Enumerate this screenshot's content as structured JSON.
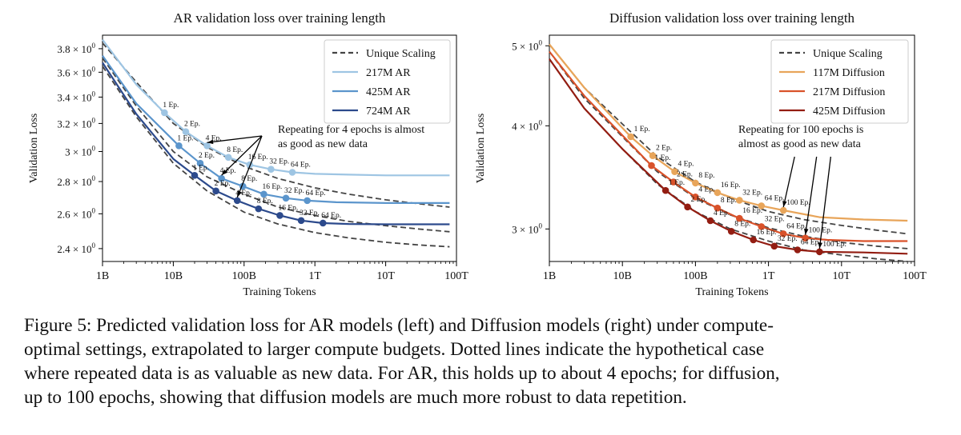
{
  "caption": {
    "lines": [
      "Figure 5: Predicted validation loss for AR models (left) and Diffusion models (right) under compute-",
      "optimal settings, extrapolated to larger compute budgets. Dotted lines indicate the hypothetical case",
      "where repeated data is as valuable as new data. For AR, this holds up to about 4 epochs; for diffusion,",
      "up to 100 epochs, showing that diffusion models are much more robust to data repetition."
    ]
  },
  "chart_data": [
    {
      "type": "line",
      "title": "AR validation loss over training length",
      "xlabel": "Training Tokens",
      "ylabel": "Validation Loss",
      "xscale": "log",
      "yscale": "log",
      "xlim": [
        1000000000.0,
        100000000000000.0
      ],
      "ylim": [
        2.33,
        3.92
      ],
      "xticks": [
        {
          "v": 1000000000.0,
          "label": "1B"
        },
        {
          "v": 10000000000.0,
          "label": "10B"
        },
        {
          "v": 100000000000.0,
          "label": "100B"
        },
        {
          "v": 1000000000000.0,
          "label": "1T"
        },
        {
          "v": 10000000000000.0,
          "label": "10T"
        },
        {
          "v": 100000000000000.0,
          "label": "100T"
        }
      ],
      "yticks": [
        {
          "v": 2.4,
          "base": "2.4"
        },
        {
          "v": 2.6,
          "base": "2.6"
        },
        {
          "v": 2.8,
          "base": "2.8"
        },
        {
          "v": 3.0,
          "base": "3"
        },
        {
          "v": 3.2,
          "base": "3.2"
        },
        {
          "v": 3.4,
          "base": "3.4"
        },
        {
          "v": 3.6,
          "base": "3.6"
        },
        {
          "v": 3.8,
          "base": "3.8"
        }
      ],
      "tick_suffix": "× 10",
      "tick_exp": "0",
      "legend_position": "top-right",
      "legend": [
        {
          "label": "Unique Scaling",
          "color": "#444444",
          "dashed": true
        },
        {
          "label": "217M AR",
          "color": "#9ec5e3",
          "dashed": false
        },
        {
          "label": "425M AR",
          "color": "#5b95cc",
          "dashed": false
        },
        {
          "label": "724M AR",
          "color": "#2c4a8c",
          "dashed": false
        }
      ],
      "series": [
        {
          "name": "Unique Scaling (217M)",
          "color": "#444444",
          "dashed": true,
          "x": [
            1000000000.0,
            3000000000.0,
            10000000000.0,
            30000000000.0,
            100000000000.0,
            300000000000.0,
            1000000000000.0,
            3000000000000.0,
            10000000000000.0,
            30000000000000.0,
            80000000000000.0
          ],
          "y": [
            3.85,
            3.52,
            3.2,
            3.03,
            2.9,
            2.82,
            2.76,
            2.72,
            2.685,
            2.66,
            2.64
          ]
        },
        {
          "name": "217M AR",
          "color": "#9ec5e3",
          "dashed": false,
          "x": [
            1000000000.0,
            3000000000.0,
            7500000000.0,
            15000000000.0,
            30000000000.0,
            60000000000.0,
            120000000000.0,
            240000000000.0,
            480000000000.0,
            1000000000000.0,
            3000000000000.0,
            10000000000000.0,
            30000000000000.0,
            80000000000000.0
          ],
          "y": [
            3.88,
            3.5,
            3.28,
            3.14,
            3.04,
            2.96,
            2.91,
            2.88,
            2.86,
            2.85,
            2.845,
            2.84,
            2.84,
            2.84
          ]
        },
        {
          "name": "Unique Scaling (425M)",
          "color": "#444444",
          "dashed": true,
          "x": [
            1000000000.0,
            3000000000.0,
            10000000000.0,
            30000000000.0,
            100000000000.0,
            300000000000.0,
            1000000000000.0,
            3000000000000.0,
            10000000000000.0,
            30000000000000.0,
            80000000000000.0
          ],
          "y": [
            3.72,
            3.33,
            3.0,
            2.83,
            2.72,
            2.64,
            2.59,
            2.555,
            2.53,
            2.51,
            2.495
          ]
        },
        {
          "name": "425M AR",
          "color": "#5b95cc",
          "dashed": false,
          "x": [
            1000000000.0,
            3000000000.0,
            12000000000.0,
            24000000000.0,
            48000000000.0,
            96000000000.0,
            190000000000.0,
            390000000000.0,
            780000000000.0,
            2000000000000.0,
            10000000000000.0,
            80000000000000.0
          ],
          "y": [
            3.74,
            3.35,
            3.04,
            2.92,
            2.82,
            2.77,
            2.72,
            2.695,
            2.68,
            2.67,
            2.665,
            2.665
          ]
        },
        {
          "name": "Unique Scaling (724M)",
          "color": "#444444",
          "dashed": true,
          "x": [
            1000000000.0,
            3000000000.0,
            10000000000.0,
            30000000000.0,
            100000000000.0,
            300000000000.0,
            1000000000000.0,
            3000000000000.0,
            10000000000000.0,
            30000000000000.0,
            80000000000000.0
          ],
          "y": [
            3.65,
            3.25,
            2.92,
            2.74,
            2.61,
            2.54,
            2.49,
            2.46,
            2.435,
            2.42,
            2.41
          ]
        },
        {
          "name": "724M AR",
          "color": "#2c4a8c",
          "dashed": false,
          "x": [
            1000000000.0,
            3000000000.0,
            10000000000.0,
            20000000000.0,
            40000000000.0,
            80000000000.0,
            160000000000.0,
            320000000000.0,
            640000000000.0,
            1300000000000.0,
            3000000000000.0,
            10000000000000.0,
            80000000000000.0
          ],
          "y": [
            3.68,
            3.27,
            2.95,
            2.84,
            2.74,
            2.68,
            2.63,
            2.59,
            2.56,
            2.545,
            2.54,
            2.538,
            2.538
          ]
        }
      ],
      "points": [
        {
          "x": 7500000000.0,
          "y": 3.28,
          "color": "#9ec5e3",
          "label": "1 Ep."
        },
        {
          "x": 15000000000.0,
          "y": 3.14,
          "color": "#9ec5e3",
          "label": "2 Ep."
        },
        {
          "x": 30000000000.0,
          "y": 3.04,
          "color": "#9ec5e3",
          "label": "4 Ep."
        },
        {
          "x": 60000000000.0,
          "y": 2.96,
          "color": "#9ec5e3",
          "label": "8 Ep."
        },
        {
          "x": 120000000000.0,
          "y": 2.91,
          "color": "#9ec5e3",
          "label": "16 Ep."
        },
        {
          "x": 240000000000.0,
          "y": 2.88,
          "color": "#9ec5e3",
          "label": "32 Ep."
        },
        {
          "x": 480000000000.0,
          "y": 2.86,
          "color": "#9ec5e3",
          "label": "64 Ep."
        },
        {
          "x": 12000000000.0,
          "y": 3.04,
          "color": "#5b95cc",
          "label": "1 Ep."
        },
        {
          "x": 24000000000.0,
          "y": 2.92,
          "color": "#5b95cc",
          "label": "2 Ep."
        },
        {
          "x": 48000000000.0,
          "y": 2.82,
          "color": "#5b95cc",
          "label": "4 Ep."
        },
        {
          "x": 96000000000.0,
          "y": 2.77,
          "color": "#5b95cc",
          "label": "8 Ep."
        },
        {
          "x": 190000000000.0,
          "y": 2.72,
          "color": "#5b95cc",
          "label": "16 Ep."
        },
        {
          "x": 390000000000.0,
          "y": 2.695,
          "color": "#5b95cc",
          "label": "32 Ep."
        },
        {
          "x": 780000000000.0,
          "y": 2.68,
          "color": "#5b95cc",
          "label": "64 Ep."
        },
        {
          "x": 20000000000.0,
          "y": 2.84,
          "color": "#2c4a8c",
          "label": "1 Ep."
        },
        {
          "x": 40000000000.0,
          "y": 2.74,
          "color": "#2c4a8c",
          "label": "2 Ep."
        },
        {
          "x": 80000000000.0,
          "y": 2.68,
          "color": "#2c4a8c",
          "label": "4 Ep."
        },
        {
          "x": 160000000000.0,
          "y": 2.63,
          "color": "#2c4a8c",
          "label": "8 Ep."
        },
        {
          "x": 320000000000.0,
          "y": 2.59,
          "color": "#2c4a8c",
          "label": "16 Ep."
        },
        {
          "x": 640000000000.0,
          "y": 2.56,
          "color": "#2c4a8c",
          "label": "32 Ep."
        },
        {
          "x": 1300000000000.0,
          "y": 2.545,
          "color": "#2c4a8c",
          "label": "64 Ep."
        }
      ],
      "annotation": {
        "lines": [
          "Repeating for 4 epochs is almost",
          "as good as new data"
        ],
        "arrow_targets": [
          {
            "x": 30000000000.0,
            "y": 3.04
          },
          {
            "x": 48000000000.0,
            "y": 2.82
          },
          {
            "x": 80000000000.0,
            "y": 2.68
          }
        ]
      }
    },
    {
      "type": "line",
      "title": "Diffusion validation loss over training length",
      "xlabel": "Training Tokens",
      "ylabel": "Validation Loss",
      "xscale": "log",
      "yscale": "log",
      "xlim": [
        1000000000.0,
        100000000000000.0
      ],
      "ylim": [
        2.74,
        5.15
      ],
      "xticks": [
        {
          "v": 1000000000.0,
          "label": "1B"
        },
        {
          "v": 10000000000.0,
          "label": "10B"
        },
        {
          "v": 100000000000.0,
          "label": "100B"
        },
        {
          "v": 1000000000000.0,
          "label": "1T"
        },
        {
          "v": 10000000000000.0,
          "label": "10T"
        },
        {
          "v": 100000000000000.0,
          "label": "100T"
        }
      ],
      "yticks": [
        {
          "v": 3.0,
          "base": "3"
        },
        {
          "v": 4.0,
          "base": "4"
        },
        {
          "v": 5.0,
          "base": "5"
        }
      ],
      "tick_suffix": "× 10",
      "tick_exp": "0",
      "legend_position": "top-right",
      "legend": [
        {
          "label": "Unique Scaling",
          "color": "#444444",
          "dashed": true
        },
        {
          "label": "117M Diffusion",
          "color": "#e8a55a",
          "dashed": false
        },
        {
          "label": "217M Diffusion",
          "color": "#d9522a",
          "dashed": false
        },
        {
          "label": "425M Diffusion",
          "color": "#931d12",
          "dashed": false
        }
      ],
      "series": [
        {
          "name": "Unique Scaling (117M)",
          "color": "#444444",
          "dashed": true,
          "x": [
            1000000000.0,
            3000000000.0,
            10000000000.0,
            30000000000.0,
            100000000000.0,
            300000000000.0,
            1000000000000.0,
            3000000000000.0,
            10000000000000.0,
            30000000000000.0,
            80000000000000.0
          ],
          "y": [
            5.02,
            4.45,
            4.02,
            3.67,
            3.42,
            3.27,
            3.15,
            3.08,
            3.03,
            2.99,
            2.96
          ]
        },
        {
          "name": "117M Diffusion",
          "color": "#e8a55a",
          "dashed": false,
          "x": [
            1000000000.0,
            3000000000.0,
            13000000000.0,
            26000000000.0,
            52000000000.0,
            100000000000.0,
            200000000000.0,
            400000000000.0,
            800000000000.0,
            1600000000000.0,
            5000000000000.0,
            20000000000000.0,
            80000000000000.0
          ],
          "y": [
            5.02,
            4.45,
            3.88,
            3.68,
            3.52,
            3.41,
            3.32,
            3.25,
            3.2,
            3.16,
            3.1,
            3.08,
            3.07
          ]
        },
        {
          "name": "Unique Scaling (217M)",
          "color": "#444444",
          "dashed": true,
          "x": [
            1000000000.0,
            3000000000.0,
            10000000000.0,
            30000000000.0,
            100000000000.0,
            300000000000.0,
            1000000000000.0,
            3000000000000.0,
            10000000000000.0,
            30000000000000.0,
            80000000000000.0
          ],
          "y": [
            4.92,
            4.32,
            3.88,
            3.52,
            3.27,
            3.12,
            3.01,
            2.94,
            2.89,
            2.86,
            2.84
          ]
        },
        {
          "name": "217M Diffusion",
          "color": "#d9522a",
          "dashed": false,
          "x": [
            1000000000.0,
            3000000000.0,
            25000000000.0,
            50000000000.0,
            100000000000.0,
            200000000000.0,
            400000000000.0,
            800000000000.0,
            1600000000000.0,
            3200000000000.0,
            6400000000000.0,
            20000000000000.0,
            80000000000000.0
          ],
          "y": [
            4.92,
            4.35,
            3.58,
            3.42,
            3.28,
            3.18,
            3.09,
            3.02,
            2.96,
            2.925,
            2.91,
            2.9,
            2.9
          ]
        },
        {
          "name": "Unique Scaling (425M)",
          "color": "#444444",
          "dashed": true,
          "x": [
            1000000000.0,
            3000000000.0,
            10000000000.0,
            30000000000.0,
            100000000000.0,
            300000000000.0,
            1000000000000.0,
            3000000000000.0,
            10000000000000.0,
            30000000000000.0,
            80000000000000.0
          ],
          "y": [
            4.82,
            4.2,
            3.75,
            3.4,
            3.15,
            3.0,
            2.9,
            2.83,
            2.79,
            2.76,
            2.74
          ]
        },
        {
          "name": "425M Diffusion",
          "color": "#931d12",
          "dashed": false,
          "x": [
            1000000000.0,
            3000000000.0,
            10000000000.0,
            39000000000.0,
            78000000000.0,
            160000000000.0,
            310000000000.0,
            620000000000.0,
            1200000000000.0,
            2500000000000.0,
            5000000000000.0,
            20000000000000.0,
            80000000000000.0
          ],
          "y": [
            4.82,
            4.2,
            3.75,
            3.34,
            3.19,
            3.07,
            2.98,
            2.91,
            2.86,
            2.83,
            2.815,
            2.81,
            2.8
          ]
        }
      ],
      "points": [
        {
          "x": 13000000000.0,
          "y": 3.88,
          "color": "#e8a55a",
          "label": "1 Ep."
        },
        {
          "x": 26000000000.0,
          "y": 3.68,
          "color": "#e8a55a",
          "label": "2 Ep."
        },
        {
          "x": 52000000000.0,
          "y": 3.52,
          "color": "#e8a55a",
          "label": "4 Ep."
        },
        {
          "x": 100000000000.0,
          "y": 3.41,
          "color": "#e8a55a",
          "label": "8 Ep."
        },
        {
          "x": 200000000000.0,
          "y": 3.32,
          "color": "#e8a55a",
          "label": "16 Ep."
        },
        {
          "x": 400000000000.0,
          "y": 3.25,
          "color": "#e8a55a",
          "label": "32 Ep."
        },
        {
          "x": 800000000000.0,
          "y": 3.2,
          "color": "#e8a55a",
          "label": "64 Ep."
        },
        {
          "x": 1600000000000.0,
          "y": 3.16,
          "color": "#e8a55a",
          "label": "100 Ep."
        },
        {
          "x": 25000000000.0,
          "y": 3.58,
          "color": "#d9522a",
          "label": "1 Ep."
        },
        {
          "x": 50000000000.0,
          "y": 3.42,
          "color": "#d9522a",
          "label": "2 Ep."
        },
        {
          "x": 100000000000.0,
          "y": 3.28,
          "color": "#d9522a",
          "label": "4 Ep."
        },
        {
          "x": 200000000000.0,
          "y": 3.18,
          "color": "#d9522a",
          "label": "8 Ep."
        },
        {
          "x": 400000000000.0,
          "y": 3.09,
          "color": "#d9522a",
          "label": "16 Ep."
        },
        {
          "x": 800000000000.0,
          "y": 3.02,
          "color": "#d9522a",
          "label": "32 Ep."
        },
        {
          "x": 1600000000000.0,
          "y": 2.96,
          "color": "#d9522a",
          "label": "64 Ep."
        },
        {
          "x": 3200000000000.0,
          "y": 2.925,
          "color": "#d9522a",
          "label": "100 Ep."
        },
        {
          "x": 39000000000.0,
          "y": 3.34,
          "color": "#931d12",
          "label": "1 Ep."
        },
        {
          "x": 78000000000.0,
          "y": 3.19,
          "color": "#931d12",
          "label": "2 Ep."
        },
        {
          "x": 160000000000.0,
          "y": 3.07,
          "color": "#931d12",
          "label": "4 Ep."
        },
        {
          "x": 310000000000.0,
          "y": 2.98,
          "color": "#931d12",
          "label": "8 Ep."
        },
        {
          "x": 620000000000.0,
          "y": 2.91,
          "color": "#931d12",
          "label": "16 Ep."
        },
        {
          "x": 1200000000000.0,
          "y": 2.86,
          "color": "#931d12",
          "label": "32 Ep."
        },
        {
          "x": 2500000000000.0,
          "y": 2.83,
          "color": "#931d12",
          "label": "64 Ep."
        },
        {
          "x": 5000000000000.0,
          "y": 2.815,
          "color": "#931d12",
          "label": "100 Ep."
        }
      ],
      "annotation": {
        "lines": [
          "Repeating for 100 epochs is",
          "almost as good as new data"
        ],
        "arrow_targets": [
          {
            "x": 1600000000000.0,
            "y": 3.16
          },
          {
            "x": 3200000000000.0,
            "y": 2.925
          },
          {
            "x": 5000000000000.0,
            "y": 2.815
          }
        ]
      }
    }
  ]
}
